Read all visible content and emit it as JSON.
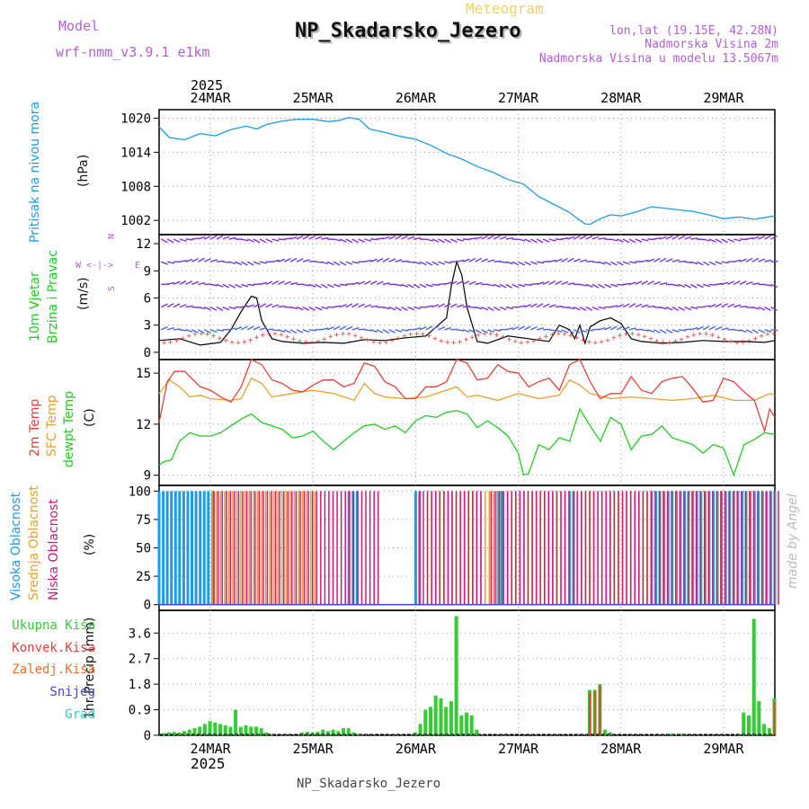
{
  "header": {
    "subtitle": "Meteogram",
    "title": "NP_Skadarsko_Jezero",
    "model_label": "Model",
    "model_name": "wrf-nmm_v3.9.1 e1km",
    "location": "lon,lat (19.15E, 42.28N)",
    "altitude": "Nadmorska Visina 2m",
    "model_altitude": "Nadmorska Visina u modelu 13.5067m",
    "year": "2025",
    "credit": "made by Angel",
    "footer": "NP_Skadarsko_Jezero"
  },
  "colors": {
    "pressure": "#1e9be8",
    "temp2m": "#e8403a",
    "sfc": "#e8a030",
    "dewpt": "#22cc22",
    "wind_label": "#22cc22",
    "high_cloud": "#1e9be8",
    "mid_cloud": "#e8a030",
    "low_cloud": "#cc1a7a",
    "rain_total": "#33cc33",
    "rain_conv": "#e8403a",
    "freezing": "#e87030",
    "snow": "#4444dd",
    "hail": "#30c8c8",
    "title_purple": "#b060d0"
  },
  "chart_data": [
    {
      "type": "line",
      "title": "Pritisak na nivou mora",
      "ylabel": "(hPa)",
      "y_ticks": [
        1002,
        1008,
        1014,
        1020
      ],
      "ylim": [
        999.5,
        1021.5
      ],
      "x_labels": [
        "24MAR",
        "25MAR",
        "26MAR",
        "27MAR",
        "28MAR",
        "29MAR"
      ],
      "x_days_start": 23.5,
      "x_days_end": 29.5,
      "series": [
        {
          "x": [
            23.5,
            23.6,
            23.75,
            23.9,
            24.05,
            24.2,
            24.35,
            24.45,
            24.55,
            24.7,
            24.85,
            25.0,
            25.15,
            25.25,
            25.35,
            25.45,
            25.55,
            25.7,
            25.85,
            26.0,
            26.15,
            26.3,
            26.45,
            26.6,
            26.75,
            26.9,
            27.05,
            27.2,
            27.35,
            27.5,
            27.6,
            27.65,
            27.7,
            27.8,
            27.9,
            28.0,
            28.15,
            28.3,
            28.5,
            28.7,
            28.85,
            29.0,
            29.15,
            29.3,
            29.5
          ],
          "values": [
            1018.5,
            1016.6,
            1016.2,
            1017.3,
            1016.9,
            1018.0,
            1018.6,
            1018.1,
            1018.9,
            1019.5,
            1019.8,
            1019.8,
            1019.4,
            1019.6,
            1020.1,
            1019.8,
            1018.1,
            1017.5,
            1016.8,
            1016.3,
            1015.2,
            1013.8,
            1012.8,
            1011.5,
            1010.5,
            1009.2,
            1008.4,
            1006.2,
            1004.8,
            1003.4,
            1002.0,
            1001.4,
            1001.3,
            1002.3,
            1003.0,
            1002.8,
            1003.5,
            1004.4,
            1004.0,
            1003.6,
            1003.0,
            1002.3,
            1002.6,
            1002.2,
            1002.8
          ]
        }
      ]
    },
    {
      "type": "line",
      "title": "10m Vjetar Brzina i Pravac",
      "ylabel": "(m/s)",
      "y_ticks": [
        0,
        3,
        6,
        9,
        12
      ],
      "ylim": [
        -0.8,
        13
      ],
      "compass": [
        "N",
        "W",
        "E",
        "S"
      ],
      "series": [
        {
          "name": "speed",
          "x": [
            23.5,
            23.7,
            23.9,
            24.1,
            24.2,
            24.3,
            24.4,
            24.45,
            24.5,
            24.6,
            24.7,
            24.9,
            25.1,
            25.3,
            25.5,
            25.7,
            25.9,
            26.1,
            26.3,
            26.35,
            26.4,
            26.45,
            26.5,
            26.6,
            26.7,
            26.9,
            27.1,
            27.3,
            27.4,
            27.5,
            27.55,
            27.6,
            27.65,
            27.7,
            27.8,
            27.9,
            28.0,
            28.1,
            28.2,
            28.4,
            28.6,
            28.8,
            29.0,
            29.2,
            29.4,
            29.5
          ],
          "values": [
            1.3,
            1.5,
            0.8,
            1.1,
            2.5,
            4.5,
            6.2,
            6.0,
            3.5,
            1.5,
            1.2,
            1.0,
            1.1,
            1.0,
            1.4,
            1.3,
            1.6,
            1.8,
            3.8,
            7.5,
            10.0,
            8.5,
            5.0,
            1.2,
            1.0,
            1.8,
            1.5,
            1.2,
            3.0,
            2.5,
            1.5,
            3.0,
            1.0,
            2.8,
            3.5,
            3.8,
            3.2,
            1.5,
            1.2,
            1.0,
            1.1,
            1.3,
            1.2,
            1.2,
            1.1,
            1.3
          ]
        }
      ]
    },
    {
      "type": "line",
      "title": "2m Temp / SFC Temp / dewpt Temp",
      "ylabel": "(C)",
      "y_ticks": [
        9,
        12,
        15
      ],
      "ylim": [
        8.4,
        15.8
      ],
      "series": [
        {
          "name": "2m Temp",
          "x": [
            23.5,
            23.58,
            23.65,
            23.75,
            23.9,
            24.0,
            24.1,
            24.2,
            24.3,
            24.4,
            24.5,
            24.6,
            24.7,
            24.8,
            24.9,
            25.0,
            25.1,
            25.2,
            25.3,
            25.4,
            25.5,
            25.6,
            25.7,
            25.8,
            25.9,
            26.0,
            26.1,
            26.2,
            26.3,
            26.4,
            26.5,
            26.6,
            26.7,
            26.8,
            26.9,
            27.0,
            27.1,
            27.2,
            27.3,
            27.4,
            27.5,
            27.6,
            27.7,
            27.8,
            27.9,
            28.0,
            28.1,
            28.2,
            28.3,
            28.4,
            28.5,
            28.6,
            28.7,
            28.8,
            28.9,
            29.0,
            29.1,
            29.2,
            29.3,
            29.4,
            29.45,
            29.5
          ],
          "values": [
            12.1,
            14.5,
            15.1,
            15.1,
            14.2,
            14.0,
            13.6,
            13.3,
            14.2,
            15.8,
            15.5,
            14.6,
            14.4,
            14.0,
            13.9,
            14.3,
            14.6,
            14.6,
            14.2,
            14.4,
            15.6,
            15.4,
            14.5,
            14.2,
            13.5,
            13.5,
            14.2,
            14.2,
            14.5,
            15.8,
            15.6,
            14.6,
            14.7,
            15.5,
            15.1,
            15.0,
            14.2,
            14.5,
            14.7,
            14.0,
            15.5,
            15.8,
            14.5,
            13.5,
            13.8,
            13.8,
            14.8,
            14.0,
            13.8,
            14.5,
            14.7,
            14.8,
            14.1,
            13.3,
            13.4,
            14.7,
            14.5,
            13.9,
            13.4,
            11.6,
            12.9,
            12.4
          ]
        },
        {
          "name": "SFC Temp",
          "x": [
            23.5,
            23.6,
            23.7,
            23.8,
            23.9,
            24.0,
            24.2,
            24.3,
            24.4,
            24.5,
            24.6,
            24.8,
            25.0,
            25.2,
            25.4,
            25.5,
            25.6,
            25.7,
            25.9,
            26.1,
            26.3,
            26.4,
            26.5,
            26.6,
            26.8,
            27.0,
            27.2,
            27.4,
            27.5,
            27.6,
            27.7,
            27.9,
            28.1,
            28.3,
            28.5,
            28.7,
            28.9,
            29.1,
            29.3,
            29.45,
            29.5
          ],
          "values": [
            13.8,
            14.6,
            14.2,
            13.6,
            13.7,
            13.5,
            13.4,
            13.5,
            14.7,
            14.4,
            13.6,
            13.8,
            14.0,
            13.8,
            13.4,
            14.4,
            13.8,
            13.6,
            13.5,
            13.6,
            14.0,
            14.2,
            13.6,
            13.7,
            13.4,
            13.8,
            13.5,
            13.7,
            14.6,
            14.3,
            13.8,
            13.5,
            13.6,
            13.5,
            13.4,
            13.5,
            13.7,
            13.4,
            13.4,
            13.8,
            13.7
          ]
        },
        {
          "name": "dewpt Temp",
          "x": [
            23.5,
            23.55,
            23.62,
            23.7,
            23.8,
            23.9,
            24.0,
            24.1,
            24.2,
            24.3,
            24.4,
            24.5,
            24.6,
            24.7,
            24.8,
            24.9,
            25.0,
            25.1,
            25.2,
            25.3,
            25.4,
            25.5,
            25.6,
            25.7,
            25.8,
            25.9,
            26.0,
            26.1,
            26.2,
            26.3,
            26.4,
            26.5,
            26.6,
            26.7,
            26.8,
            26.9,
            27.0,
            27.05,
            27.1,
            27.2,
            27.3,
            27.4,
            27.5,
            27.6,
            27.7,
            27.8,
            27.9,
            28.0,
            28.1,
            28.2,
            28.3,
            28.4,
            28.5,
            28.6,
            28.7,
            28.8,
            28.9,
            29.0,
            29.1,
            29.2,
            29.3,
            29.4,
            29.5
          ],
          "values": [
            9.6,
            9.8,
            9.9,
            11.0,
            11.5,
            11.3,
            11.3,
            11.5,
            11.9,
            12.3,
            12.6,
            12.1,
            11.9,
            11.7,
            11.2,
            11.3,
            11.6,
            11.0,
            10.5,
            11.0,
            11.5,
            11.9,
            12.0,
            11.7,
            11.9,
            11.5,
            12.2,
            12.5,
            12.4,
            12.7,
            12.8,
            12.6,
            11.8,
            12.2,
            11.8,
            11.3,
            10.3,
            9.0,
            9.1,
            10.8,
            10.5,
            11.2,
            11.0,
            12.9,
            11.9,
            11.0,
            12.4,
            12.0,
            10.5,
            11.3,
            11.4,
            11.9,
            11.2,
            11.0,
            10.8,
            10.3,
            10.8,
            10.6,
            9.0,
            10.8,
            11.1,
            11.5,
            11.4
          ]
        }
      ]
    },
    {
      "type": "bar",
      "title": "Visoka / Srednja / Niska Oblacnost",
      "ylabel": "(%)",
      "y_ticks": [
        0,
        25,
        50,
        75,
        100
      ],
      "ylim": [
        -5,
        105
      ],
      "series": [
        {
          "name": "Visoka Oblacnost",
          "ranges": [
            [
              23.5,
              24.05
            ],
            [
              25.35,
              25.45
            ],
            [
              26.0,
              26.05
            ],
            [
              26.8,
              26.85
            ],
            [
              27.5,
              27.55
            ],
            [
              28.3,
              29.5
            ]
          ],
          "values": [
            100,
            100,
            100,
            100,
            100,
            100
          ]
        },
        {
          "name": "Srednja Oblacnost",
          "ranges": [
            [
              24.0,
              25.0
            ],
            [
              26.1,
              26.8
            ],
            [
              26.8,
              29.5
            ]
          ],
          "values": [
            100,
            100,
            100
          ]
        },
        {
          "name": "Niska Oblacnost",
          "ranges": [
            [
              24.0,
              25.6
            ],
            [
              26.0,
              26.6
            ],
            [
              26.7,
              29.5
            ]
          ],
          "values": [
            100,
            100,
            100
          ]
        }
      ]
    },
    {
      "type": "bar",
      "title": "1hr Precip",
      "ylabel": "1hr Precip (mm)",
      "y_ticks": [
        0,
        0.9,
        1.8,
        2.7,
        3.6
      ],
      "ylim": [
        0,
        4.4
      ],
      "legend": [
        "Ukupna Kisa",
        "Konvek.Kisa",
        "Zaledj.Kisa",
        "Snijeg",
        "Grad"
      ],
      "series": [
        {
          "name": "Ukupna Kisa",
          "x": [
            23.55,
            23.6,
            23.65,
            23.7,
            23.75,
            23.8,
            23.85,
            23.9,
            23.95,
            24.0,
            24.05,
            24.1,
            24.15,
            24.2,
            24.25,
            24.3,
            24.35,
            24.4,
            24.45,
            24.5,
            24.55,
            24.6,
            24.9,
            24.95,
            25.0,
            25.05,
            25.1,
            25.15,
            25.2,
            25.25,
            25.3,
            25.35,
            25.4,
            25.45,
            26.0,
            26.05,
            26.1,
            26.15,
            26.2,
            26.25,
            26.3,
            26.35,
            26.4,
            26.45,
            26.5,
            26.55,
            26.6,
            27.7,
            27.75,
            27.8,
            27.85,
            27.9,
            28.5,
            28.6,
            29.2,
            29.25,
            29.3,
            29.35,
            29.4,
            29.45,
            29.5
          ],
          "values": [
            0.08,
            0.1,
            0.12,
            0.1,
            0.15,
            0.2,
            0.25,
            0.3,
            0.4,
            0.5,
            0.45,
            0.4,
            0.35,
            0.3,
            0.9,
            0.3,
            0.35,
            0.3,
            0.3,
            0.25,
            0.1,
            0.05,
            0.1,
            0.12,
            0.1,
            0.12,
            0.2,
            0.15,
            0.2,
            0.15,
            0.25,
            0.25,
            0.1,
            0.05,
            0.1,
            0.4,
            0.9,
            1.0,
            1.4,
            1.3,
            1.0,
            1.2,
            4.2,
            0.7,
            0.8,
            0.7,
            0.2,
            1.6,
            1.6,
            1.8,
            0.2,
            0.1,
            0.05,
            0.05,
            0.8,
            0.7,
            4.1,
            1.2,
            0.4,
            0.25,
            1.3
          ]
        },
        {
          "name": "Konvek.Kisa",
          "x": [
            27.7,
            27.75,
            27.8,
            29.5
          ],
          "values": [
            1.5,
            1.55,
            1.75,
            1.2
          ]
        }
      ]
    }
  ]
}
